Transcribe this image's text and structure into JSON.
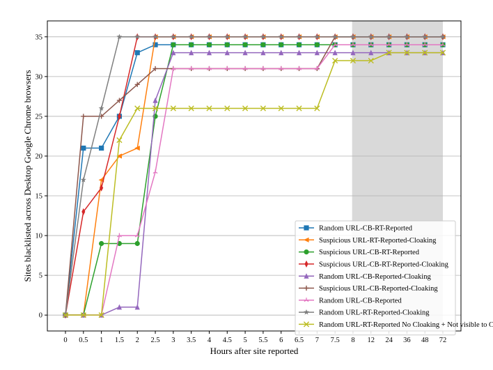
{
  "chart_data": {
    "type": "line",
    "xlabel": "Hours after site reported",
    "ylabel": "Sites blacklisted across Desktop Google Chrome browsers",
    "categories": [
      "0",
      "0.5",
      "1",
      "1.5",
      "2",
      "2.5",
      "3",
      "3.5",
      "4",
      "4.5",
      "5",
      "5.5",
      "6",
      "6.5",
      "7",
      "7.5",
      "8",
      "12",
      "24",
      "36",
      "48",
      "72"
    ],
    "ylim": [
      -2,
      37
    ],
    "yticks": [
      0,
      5,
      10,
      15,
      20,
      25,
      30,
      35
    ],
    "grid": "horizontal",
    "shaded_region": {
      "from": "8",
      "to": "72",
      "color": "#d9d9d9"
    },
    "legend_position": "lower-right",
    "series": [
      {
        "name": "Random URL-CB-RT-Reported",
        "color": "#1f77b4",
        "marker": "square",
        "values": [
          0,
          21,
          21,
          25,
          33,
          34,
          34,
          34,
          34,
          34,
          34,
          34,
          34,
          34,
          34,
          34,
          34,
          34,
          34,
          34,
          34,
          34
        ]
      },
      {
        "name": "Suspicious URL-RT-Reported-Cloaking",
        "color": "#ff7f0e",
        "marker": "triangle-left",
        "values": [
          0,
          0,
          17,
          20,
          21,
          35,
          35,
          35,
          35,
          35,
          35,
          35,
          35,
          35,
          35,
          35,
          35,
          35,
          35,
          35,
          35,
          35
        ]
      },
      {
        "name": "Suspicious URL-CB-RT-Reported",
        "color": "#2ca02c",
        "marker": "circle",
        "values": [
          0,
          0,
          9,
          9,
          9,
          25,
          34,
          34,
          34,
          34,
          34,
          34,
          34,
          34,
          34,
          34,
          34,
          34,
          34,
          34,
          34,
          34
        ]
      },
      {
        "name": "Suspicious URL-CB-RT-Reported-Cloaking",
        "color": "#d62728",
        "marker": "thin-diamond",
        "values": [
          0,
          13,
          16,
          25,
          35,
          35,
          35,
          35,
          35,
          35,
          35,
          35,
          35,
          35,
          35,
          35,
          35,
          35,
          35,
          35,
          35,
          35
        ]
      },
      {
        "name": "Random URL-CB-Reported-Cloaking",
        "color": "#9467bd",
        "marker": "triangle-up",
        "values": [
          0,
          0,
          0,
          1,
          1,
          27,
          33,
          33,
          33,
          33,
          33,
          33,
          33,
          33,
          33,
          33,
          33,
          33,
          33,
          33,
          33,
          33
        ]
      },
      {
        "name": "Suspicious URL-CB-Reported-Cloaking",
        "color": "#8c564b",
        "marker": "plus",
        "values": [
          0,
          25,
          25,
          27,
          29,
          31,
          31,
          31,
          31,
          31,
          31,
          31,
          31,
          31,
          31,
          35,
          35,
          35,
          35,
          35,
          35,
          35
        ]
      },
      {
        "name": "Random URL-CB-Reported",
        "color": "#e377c2",
        "marker": "tri-up",
        "values": [
          0,
          0,
          0,
          10,
          10,
          18,
          31,
          31,
          31,
          31,
          31,
          31,
          31,
          31,
          31,
          34,
          34,
          34,
          34,
          34,
          34,
          34
        ]
      },
      {
        "name": "Random URL-RT-Reported-Cloaking",
        "color": "#7f7f7f",
        "marker": "star",
        "values": [
          0,
          17,
          26,
          35,
          35,
          35,
          35,
          35,
          35,
          35,
          35,
          35,
          35,
          35,
          35,
          35,
          35,
          35,
          35,
          35,
          35,
          35
        ]
      },
      {
        "name": "Random URL-RT-Reported No Cloaking + Not visible to CS",
        "color": "#bcbd22",
        "marker": "x",
        "values": [
          0,
          0,
          0,
          22,
          26,
          26,
          26,
          26,
          26,
          26,
          26,
          26,
          26,
          26,
          26,
          32,
          32,
          32,
          33,
          33,
          33,
          33
        ]
      }
    ]
  }
}
